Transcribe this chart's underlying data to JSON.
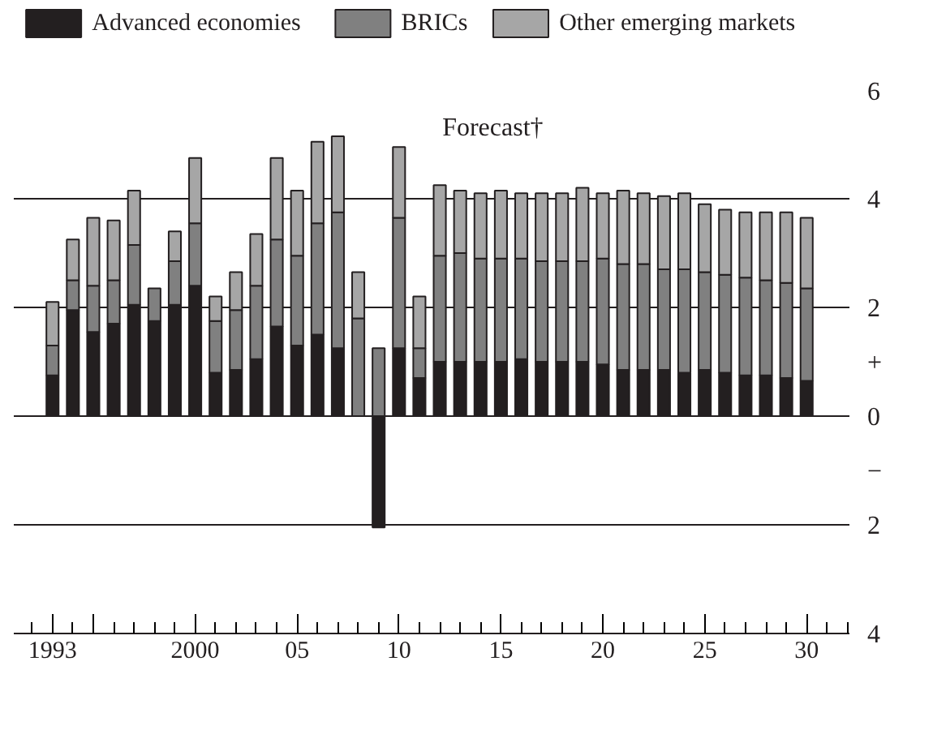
{
  "chart_data": {
    "type": "bar",
    "stacked": true,
    "x": [
      1993,
      1994,
      1995,
      1996,
      1997,
      1998,
      1999,
      2000,
      2001,
      2002,
      2003,
      2004,
      2005,
      2006,
      2007,
      2008,
      2009,
      2010,
      2011,
      2012,
      2013,
      2014,
      2015,
      2016,
      2017,
      2018,
      2019,
      2020,
      2021,
      2022,
      2023,
      2024,
      2025,
      2026,
      2027,
      2028,
      2029,
      2030
    ],
    "series": [
      {
        "name": "Advanced economies",
        "color": "#231f20",
        "values": [
          0.75,
          1.95,
          1.55,
          1.7,
          2.05,
          1.75,
          2.05,
          2.4,
          0.8,
          0.85,
          1.05,
          1.65,
          1.3,
          1.5,
          1.25,
          0,
          -2.05,
          1.25,
          0.7,
          1.0,
          1.0,
          1.0,
          1.0,
          1.05,
          1.0,
          1.0,
          1.0,
          0.95,
          0.85,
          0.85,
          0.85,
          0.8,
          0.85,
          0.8,
          0.75,
          0.75,
          0.7,
          0.65
        ]
      },
      {
        "name": "BRICs",
        "color": "#808080",
        "values": [
          0.55,
          0.55,
          0.85,
          0.8,
          1.1,
          0.6,
          0.8,
          1.15,
          0.95,
          1.1,
          1.35,
          1.6,
          1.65,
          2.05,
          2.5,
          1.8,
          1.25,
          2.4,
          0.55,
          1.95,
          2.0,
          1.9,
          1.9,
          1.85,
          1.85,
          1.85,
          1.85,
          1.95,
          1.95,
          1.95,
          1.85,
          1.9,
          1.8,
          1.8,
          1.8,
          1.75,
          1.75,
          1.7
        ]
      },
      {
        "name": "Other emerging markets",
        "color": "#a6a6a6",
        "values": [
          0.8,
          0.75,
          1.25,
          1.1,
          1.0,
          0,
          0.55,
          1.2,
          0.45,
          0.7,
          0.95,
          1.5,
          1.2,
          1.5,
          1.4,
          0.85,
          0,
          1.3,
          0.95,
          1.3,
          1.15,
          1.2,
          1.25,
          1.2,
          1.25,
          1.25,
          1.35,
          1.2,
          1.35,
          1.3,
          1.35,
          1.4,
          1.25,
          1.2,
          1.2,
          1.25,
          1.3,
          1.3
        ]
      }
    ],
    "xlim": [
      1991.1,
      2032.1
    ],
    "xticks": [
      {
        "value": 1993,
        "label": "1993"
      },
      {
        "value": 1995,
        "label": null
      },
      2000,
      {
        "value": 2005,
        "label": "05"
      },
      {
        "value": 2010,
        "label": "10"
      },
      {
        "value": 2015,
        "label": "15"
      },
      {
        "value": 2020,
        "label": "20"
      },
      {
        "value": 2025,
        "label": "25"
      },
      {
        "value": 2030,
        "label": "30"
      }
    ],
    "ylim": [
      -4,
      6
    ],
    "yticks": [
      6,
      4,
      2,
      {
        "value": 1,
        "label": "+"
      },
      0,
      {
        "value": -1,
        "label": "−"
      },
      {
        "value": -2,
        "label": "2"
      },
      {
        "value": -4,
        "label": "4"
      }
    ],
    "grid": "y",
    "legend": "top",
    "annotations": [
      "Forecast†"
    ]
  }
}
